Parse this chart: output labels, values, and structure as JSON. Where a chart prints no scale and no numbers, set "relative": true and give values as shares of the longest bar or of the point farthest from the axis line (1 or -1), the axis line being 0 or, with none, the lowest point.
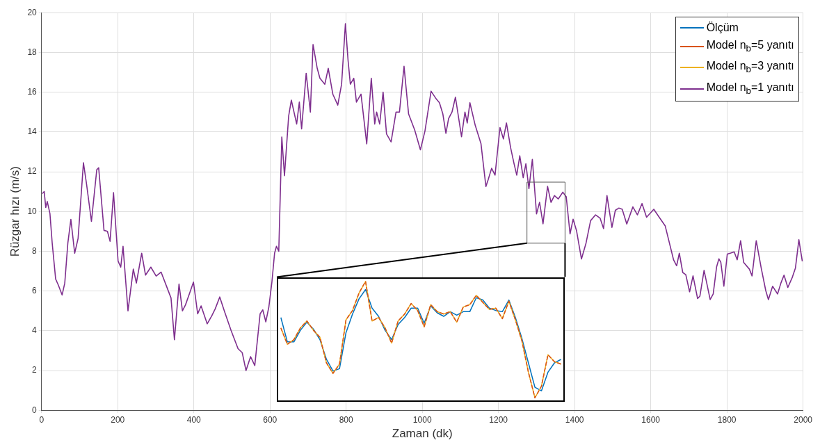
{
  "chart_data": [
    {
      "type": "line",
      "xlabel": "Zaman (dk)",
      "ylabel": "Rüzgar hızı (m/s)",
      "xlim": [
        0,
        2000
      ],
      "ylim": [
        0,
        20
      ],
      "xticks": [
        0,
        200,
        400,
        600,
        800,
        1000,
        1200,
        1400,
        1600,
        1800,
        2000
      ],
      "yticks": [
        0,
        2,
        4,
        6,
        8,
        10,
        12,
        14,
        16,
        18,
        20
      ],
      "grid": true,
      "legend": "top right",
      "marker": "none",
      "series": [
        {
          "name": "Ölçüm",
          "color": "#0072bd"
        },
        {
          "name": "Model n$_{b}$=5 yanıtı",
          "color": "#d95319"
        },
        {
          "name": "Model n$_{b}$=3 yanıtı",
          "color": "#edb120"
        },
        {
          "name": "Model n$_{b}$=1 yanıtı",
          "color": "#7e2f8e",
          "x": [
            2,
            7,
            11,
            15,
            22,
            28,
            37,
            44,
            54,
            61,
            69,
            77,
            87,
            96,
            110,
            118,
            131,
            145,
            150,
            164,
            173,
            180,
            189,
            201,
            208,
            214,
            227,
            241,
            249,
            263,
            273,
            287,
            301,
            314,
            329,
            340,
            349,
            361,
            370,
            378,
            389,
            399,
            410,
            419,
            435,
            447,
            456,
            468,
            480,
            498,
            516,
            527,
            537,
            549,
            560,
            574,
            581,
            589,
            597,
            605,
            612,
            617,
            623,
            631,
            638,
            649,
            656,
            670,
            677,
            683,
            695,
            706,
            713,
            724,
            731,
            744,
            753,
            765,
            778,
            788,
            798,
            805,
            811,
            820,
            827,
            839,
            854,
            866,
            875,
            880,
            888,
            897,
            906,
            918,
            931,
            940,
            952,
            964,
            980,
            995,
            1007,
            1023,
            1035,
            1045,
            1054,
            1062,
            1069,
            1078,
            1087,
            1103,
            1112,
            1118,
            1125,
            1139,
            1154,
            1167,
            1173,
            1182,
            1191,
            1204,
            1213,
            1221,
            1232,
            1241,
            1248,
            1256,
            1265,
            1272,
            1280,
            1289,
            1300,
            1308,
            1317,
            1329,
            1338,
            1347,
            1357,
            1369,
            1378,
            1388,
            1396,
            1405,
            1418,
            1430,
            1442,
            1455,
            1467,
            1476,
            1485,
            1498,
            1507,
            1516,
            1525,
            1537,
            1553,
            1565,
            1577,
            1589,
            1608,
            1620,
            1638,
            1660,
            1668,
            1675,
            1684,
            1692,
            1702,
            1711,
            1723,
            1729,
            1740,
            1756,
            1764,
            1773,
            1779,
            1784,
            1792,
            1801,
            1810,
            1819,
            1827,
            1836,
            1844,
            1859,
            1866,
            1877,
            1890,
            1902,
            1909,
            1920,
            1933,
            1942,
            1950,
            1960,
            1972,
            1980,
            1989,
            1998
          ],
          "values": [
            10.9,
            11.0,
            10.2,
            10.5,
            9.9,
            8.4,
            6.6,
            6.3,
            5.8,
            6.4,
            8.4,
            9.6,
            7.9,
            8.65,
            12.45,
            11.4,
            9.5,
            12.1,
            12.2,
            9.05,
            9.0,
            8.5,
            10.95,
            7.5,
            7.2,
            8.25,
            5.0,
            7.1,
            6.4,
            7.9,
            6.8,
            7.2,
            6.75,
            6.95,
            6.2,
            5.65,
            3.55,
            6.35,
            5.0,
            5.3,
            5.9,
            6.45,
            4.85,
            5.25,
            4.35,
            4.75,
            5.1,
            5.7,
            5.0,
            4.0,
            3.1,
            2.9,
            2.0,
            2.7,
            2.25,
            4.85,
            5.05,
            4.45,
            5.2,
            6.45,
            7.9,
            8.25,
            8.0,
            13.75,
            11.8,
            14.8,
            15.6,
            14.4,
            15.5,
            14.15,
            16.95,
            15.0,
            18.4,
            17.2,
            16.7,
            16.4,
            17.2,
            15.9,
            15.35,
            16.4,
            19.45,
            17.6,
            16.4,
            16.7,
            15.5,
            15.9,
            13.4,
            16.7,
            14.4,
            15.0,
            14.4,
            16.0,
            13.9,
            13.5,
            15.0,
            15.0,
            17.3,
            14.9,
            14.1,
            13.1,
            14.05,
            16.05,
            15.7,
            15.47,
            14.9,
            13.93,
            14.67,
            15.0,
            15.75,
            13.76,
            15.0,
            14.45,
            15.47,
            14.33,
            13.42,
            11.26,
            11.6,
            12.17,
            11.83,
            14.22,
            13.65,
            14.45,
            13.2,
            12.4,
            11.83,
            12.8,
            11.7,
            12.4,
            11.15,
            12.62,
            9.88,
            10.46,
            9.38,
            11.26,
            10.46,
            10.8,
            10.63,
            10.97,
            10.74,
            8.87,
            9.61,
            9.04,
            7.61,
            8.41,
            9.54,
            9.83,
            9.66,
            9.14,
            10.8,
            9.2,
            10.06,
            10.17,
            10.11,
            9.37,
            10.23,
            9.83,
            10.4,
            9.71,
            10.11,
            9.77,
            9.27,
            7.56,
            7.27,
            7.9,
            6.93,
            6.82,
            5.96,
            6.76,
            5.62,
            5.74,
            7.04,
            5.57,
            5.85,
            7.22,
            7.62,
            7.44,
            6.24,
            7.86,
            7.91,
            7.97,
            7.57,
            8.53,
            7.44,
            7.1,
            6.76,
            8.53,
            7.16,
            6.02,
            5.57,
            6.24,
            5.85,
            6.41,
            6.8,
            6.18,
            6.7,
            7.16,
            8.58,
            7.49
          ]
        }
      ]
    },
    {
      "type": "line",
      "relative": true,
      "marker": "none",
      "categories": [
        null,
        null,
        null,
        null,
        null,
        null,
        null,
        null,
        null,
        null,
        null,
        null,
        null,
        null,
        null,
        null,
        null,
        null,
        null,
        null,
        null,
        null,
        null,
        null,
        null,
        null,
        null,
        null,
        null,
        null,
        null,
        null,
        null,
        null,
        null,
        null,
        null,
        null,
        null,
        null,
        null,
        null,
        null,
        null
      ],
      "series": [
        {
          "color": "#0072bd",
          "line_style": "solid",
          "values": [
            0.69,
            0.48,
            0.48,
            0.58,
            0.65,
            0.59,
            0.5,
            0.33,
            0.23,
            0.25,
            0.56,
            0.72,
            0.85,
            0.93,
            0.77,
            0.7,
            0.58,
            0.5,
            0.63,
            0.69,
            0.77,
            0.77,
            0.64,
            0.79,
            0.73,
            0.7,
            0.74,
            0.71,
            0.74,
            0.74,
            0.86,
            0.84,
            0.77,
            0.75,
            0.74,
            0.84,
            0.69,
            0.51,
            0.3,
            0.09,
            0.06,
            0.22,
            0.3,
            0.33
          ]
        },
        {
          "color": "#edb120",
          "line_style": "solid",
          "values": [
            0.6,
            0.46,
            0.5,
            0.6,
            0.66,
            0.58,
            0.52,
            0.3,
            0.21,
            0.29,
            0.67,
            0.75,
            0.9,
            1,
            0.66,
            0.69,
            0.6,
            0.47,
            0.66,
            0.72,
            0.81,
            0.75,
            0.61,
            0.8,
            0.74,
            0.72,
            0.74,
            0.65,
            0.78,
            0.8,
            0.88,
            0.82,
            0.76,
            0.77,
            0.68,
            0.83,
            0.67,
            0.49,
            0.22,
            0,
            0.1,
            0.37,
            0.31,
            0.29
          ]
        },
        {
          "color": "#d95319",
          "line_style": "dashed",
          "values": [
            0.6,
            0.46,
            0.5,
            0.6,
            0.66,
            0.58,
            0.52,
            0.3,
            0.21,
            0.29,
            0.67,
            0.75,
            0.9,
            1,
            0.66,
            0.69,
            0.6,
            0.47,
            0.66,
            0.72,
            0.81,
            0.75,
            0.61,
            0.8,
            0.74,
            0.72,
            0.74,
            0.65,
            0.78,
            0.8,
            0.88,
            0.82,
            0.76,
            0.77,
            0.68,
            0.83,
            0.67,
            0.49,
            0.22,
            0,
            0.1,
            0.37,
            0.31,
            0.29
          ]
        }
      ]
    }
  ]
}
